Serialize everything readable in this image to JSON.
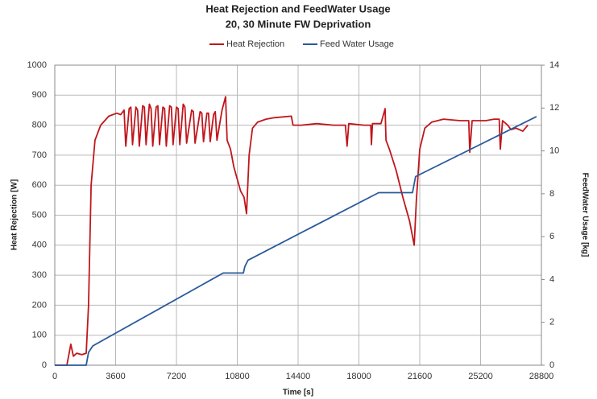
{
  "chart_data": {
    "type": "line",
    "title": "Heat Rejection and FeedWater Usage",
    "subtitle": "20, 30 Minute FW Deprivation",
    "xlabel": "Time [s]",
    "ylabel": "Heat Rejection [W]",
    "y2label": "FeedWater Usage [kg]",
    "xlim": [
      0,
      28800
    ],
    "xticks": [
      0,
      3600,
      7200,
      10800,
      14400,
      18000,
      21600,
      25200,
      28800
    ],
    "ylim": [
      0,
      1000
    ],
    "yticks": [
      0,
      100,
      200,
      300,
      400,
      500,
      600,
      700,
      800,
      900,
      1000
    ],
    "y2lim": [
      0,
      14
    ],
    "y2ticks": [
      0,
      2,
      4,
      6,
      8,
      10,
      12,
      14
    ],
    "grid": true,
    "legend": "top",
    "series": [
      {
        "name": "Heat Rejection",
        "color": "#c0161c",
        "x": [
          0,
          715,
          950,
          1100,
          1300,
          1600,
          1860,
          2000,
          2150,
          2380,
          2720,
          3200,
          3670,
          3900,
          4100,
          4200,
          4400,
          4500,
          4600,
          4800,
          4900,
          5000,
          5200,
          5300,
          5400,
          5600,
          5700,
          5800,
          6000,
          6100,
          6200,
          6400,
          6500,
          6600,
          6800,
          6900,
          7000,
          7200,
          7300,
          7400,
          7600,
          7700,
          7800,
          8100,
          8200,
          8300,
          8600,
          8700,
          8800,
          9000,
          9100,
          9200,
          9400,
          9500,
          9600,
          9900,
          10110,
          10200,
          10400,
          10600,
          10800,
          11000,
          11200,
          11350,
          11500,
          11700,
          12000,
          12500,
          13000,
          14000,
          14100,
          14600,
          15500,
          16500,
          17200,
          17300,
          17400,
          18300,
          18700,
          18740,
          18800,
          19300,
          19550,
          19600,
          19800,
          20200,
          20600,
          21000,
          21270,
          21400,
          21600,
          21900,
          22300,
          23000,
          24000,
          24500,
          24560,
          24700,
          25500,
          26000,
          26300,
          26370,
          26500,
          26800,
          27000,
          27300,
          27700,
          28000
        ],
        "values": [
          0,
          0,
          70,
          30,
          40,
          35,
          40,
          200,
          600,
          750,
          800,
          830,
          840,
          835,
          850,
          730,
          855,
          860,
          735,
          860,
          850,
          730,
          865,
          860,
          735,
          870,
          855,
          730,
          860,
          865,
          735,
          860,
          855,
          730,
          865,
          860,
          735,
          860,
          855,
          735,
          870,
          860,
          740,
          850,
          845,
          740,
          845,
          840,
          745,
          840,
          840,
          745,
          835,
          845,
          750,
          850,
          895,
          750,
          720,
          660,
          620,
          580,
          560,
          505,
          700,
          790,
          810,
          820,
          825,
          830,
          800,
          800,
          805,
          800,
          800,
          730,
          805,
          800,
          800,
          735,
          805,
          805,
          855,
          750,
          720,
          650,
          560,
          480,
          400,
          550,
          720,
          790,
          810,
          820,
          815,
          815,
          710,
          815,
          815,
          820,
          820,
          720,
          815,
          800,
          785,
          790,
          780,
          800
        ]
      },
      {
        "name": "Feed Water Usage",
        "color": "#2a5a9a",
        "axis": "y2",
        "x": [
          0,
          1860,
          2000,
          2250,
          9970,
          11160,
          11250,
          11440,
          19170,
          21170,
          21350,
          28510
        ],
        "values": [
          0,
          0,
          0.6,
          0.9,
          4.3,
          4.3,
          4.6,
          4.9,
          8.05,
          8.05,
          8.8,
          11.6
        ]
      }
    ]
  }
}
